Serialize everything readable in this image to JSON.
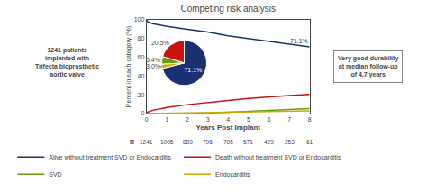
{
  "chart_data": [
    {
      "type": "line",
      "title": "Competing risk analysis",
      "xlabel": "Years Post Implant",
      "ylabel": "Percent in each category (%)",
      "xlim": [
        0,
        8
      ],
      "ylim": [
        0,
        100
      ],
      "xticks": [
        0,
        1,
        2,
        3,
        4,
        5,
        6,
        7,
        8
      ],
      "yticks": [
        0,
        20,
        40,
        60,
        80,
        100
      ],
      "grid": false,
      "legend": "bottom",
      "series": [
        {
          "name": "Alive without treatment SVD or Endocarditis",
          "color": "#1a3070",
          "x": [
            0,
            0.05,
            0.3,
            0.5,
            1,
            2,
            3,
            4,
            5,
            6,
            7,
            8
          ],
          "values": [
            100,
            98,
            96,
            95,
            93,
            90,
            87,
            83,
            80,
            77,
            74,
            71.1
          ]
        },
        {
          "name": "Death without treatment SVD or Endocarditis",
          "color": "#cc1111",
          "x": [
            0,
            0.05,
            0.3,
            0.5,
            1,
            2,
            3,
            4,
            5,
            6,
            7,
            8
          ],
          "values": [
            0,
            1.5,
            3.5,
            4.5,
            6.5,
            9.5,
            12,
            14,
            16,
            17.8,
            19.3,
            20.5
          ]
        },
        {
          "name": "SVD",
          "color": "#6a9a10",
          "x": [
            0,
            1,
            2,
            3,
            4,
            5,
            6,
            7,
            8
          ],
          "values": [
            0,
            0.1,
            0.3,
            0.6,
            1.5,
            2.5,
            3.5,
            4.5,
            5.4
          ]
        },
        {
          "name": "Endocarditis",
          "color": "#ccaa00",
          "x": [
            0,
            1,
            2,
            3,
            4,
            5,
            6,
            7,
            8
          ],
          "values": [
            0,
            0.3,
            0.8,
            1.2,
            1.8,
            2.2,
            2.5,
            2.8,
            3.0
          ]
        }
      ],
      "at_risk": {
        "label": "R",
        "x": [
          0,
          1,
          2,
          3,
          4,
          5,
          6,
          7,
          8
        ],
        "values": [
          1241,
          1005,
          889,
          796,
          705,
          571,
          429,
          253,
          61
        ]
      },
      "annotations": [
        "71.1%",
        "1241 patients\nimplanted with\nTrifecta bioprosthetic\naortic valve",
        "Very good durability\nat median follow-up\nof 4.7 years"
      ]
    },
    {
      "type": "pie",
      "values": [
        71.1,
        20.5,
        5.4,
        3.0
      ],
      "value_labels": [
        "71.1%",
        "20.5%",
        "5.4%",
        "3.0%"
      ],
      "colors": [
        "#1a3070",
        "#cc1111",
        "#6a9a10",
        "#ccaa00"
      ],
      "data_labels": true
    }
  ]
}
